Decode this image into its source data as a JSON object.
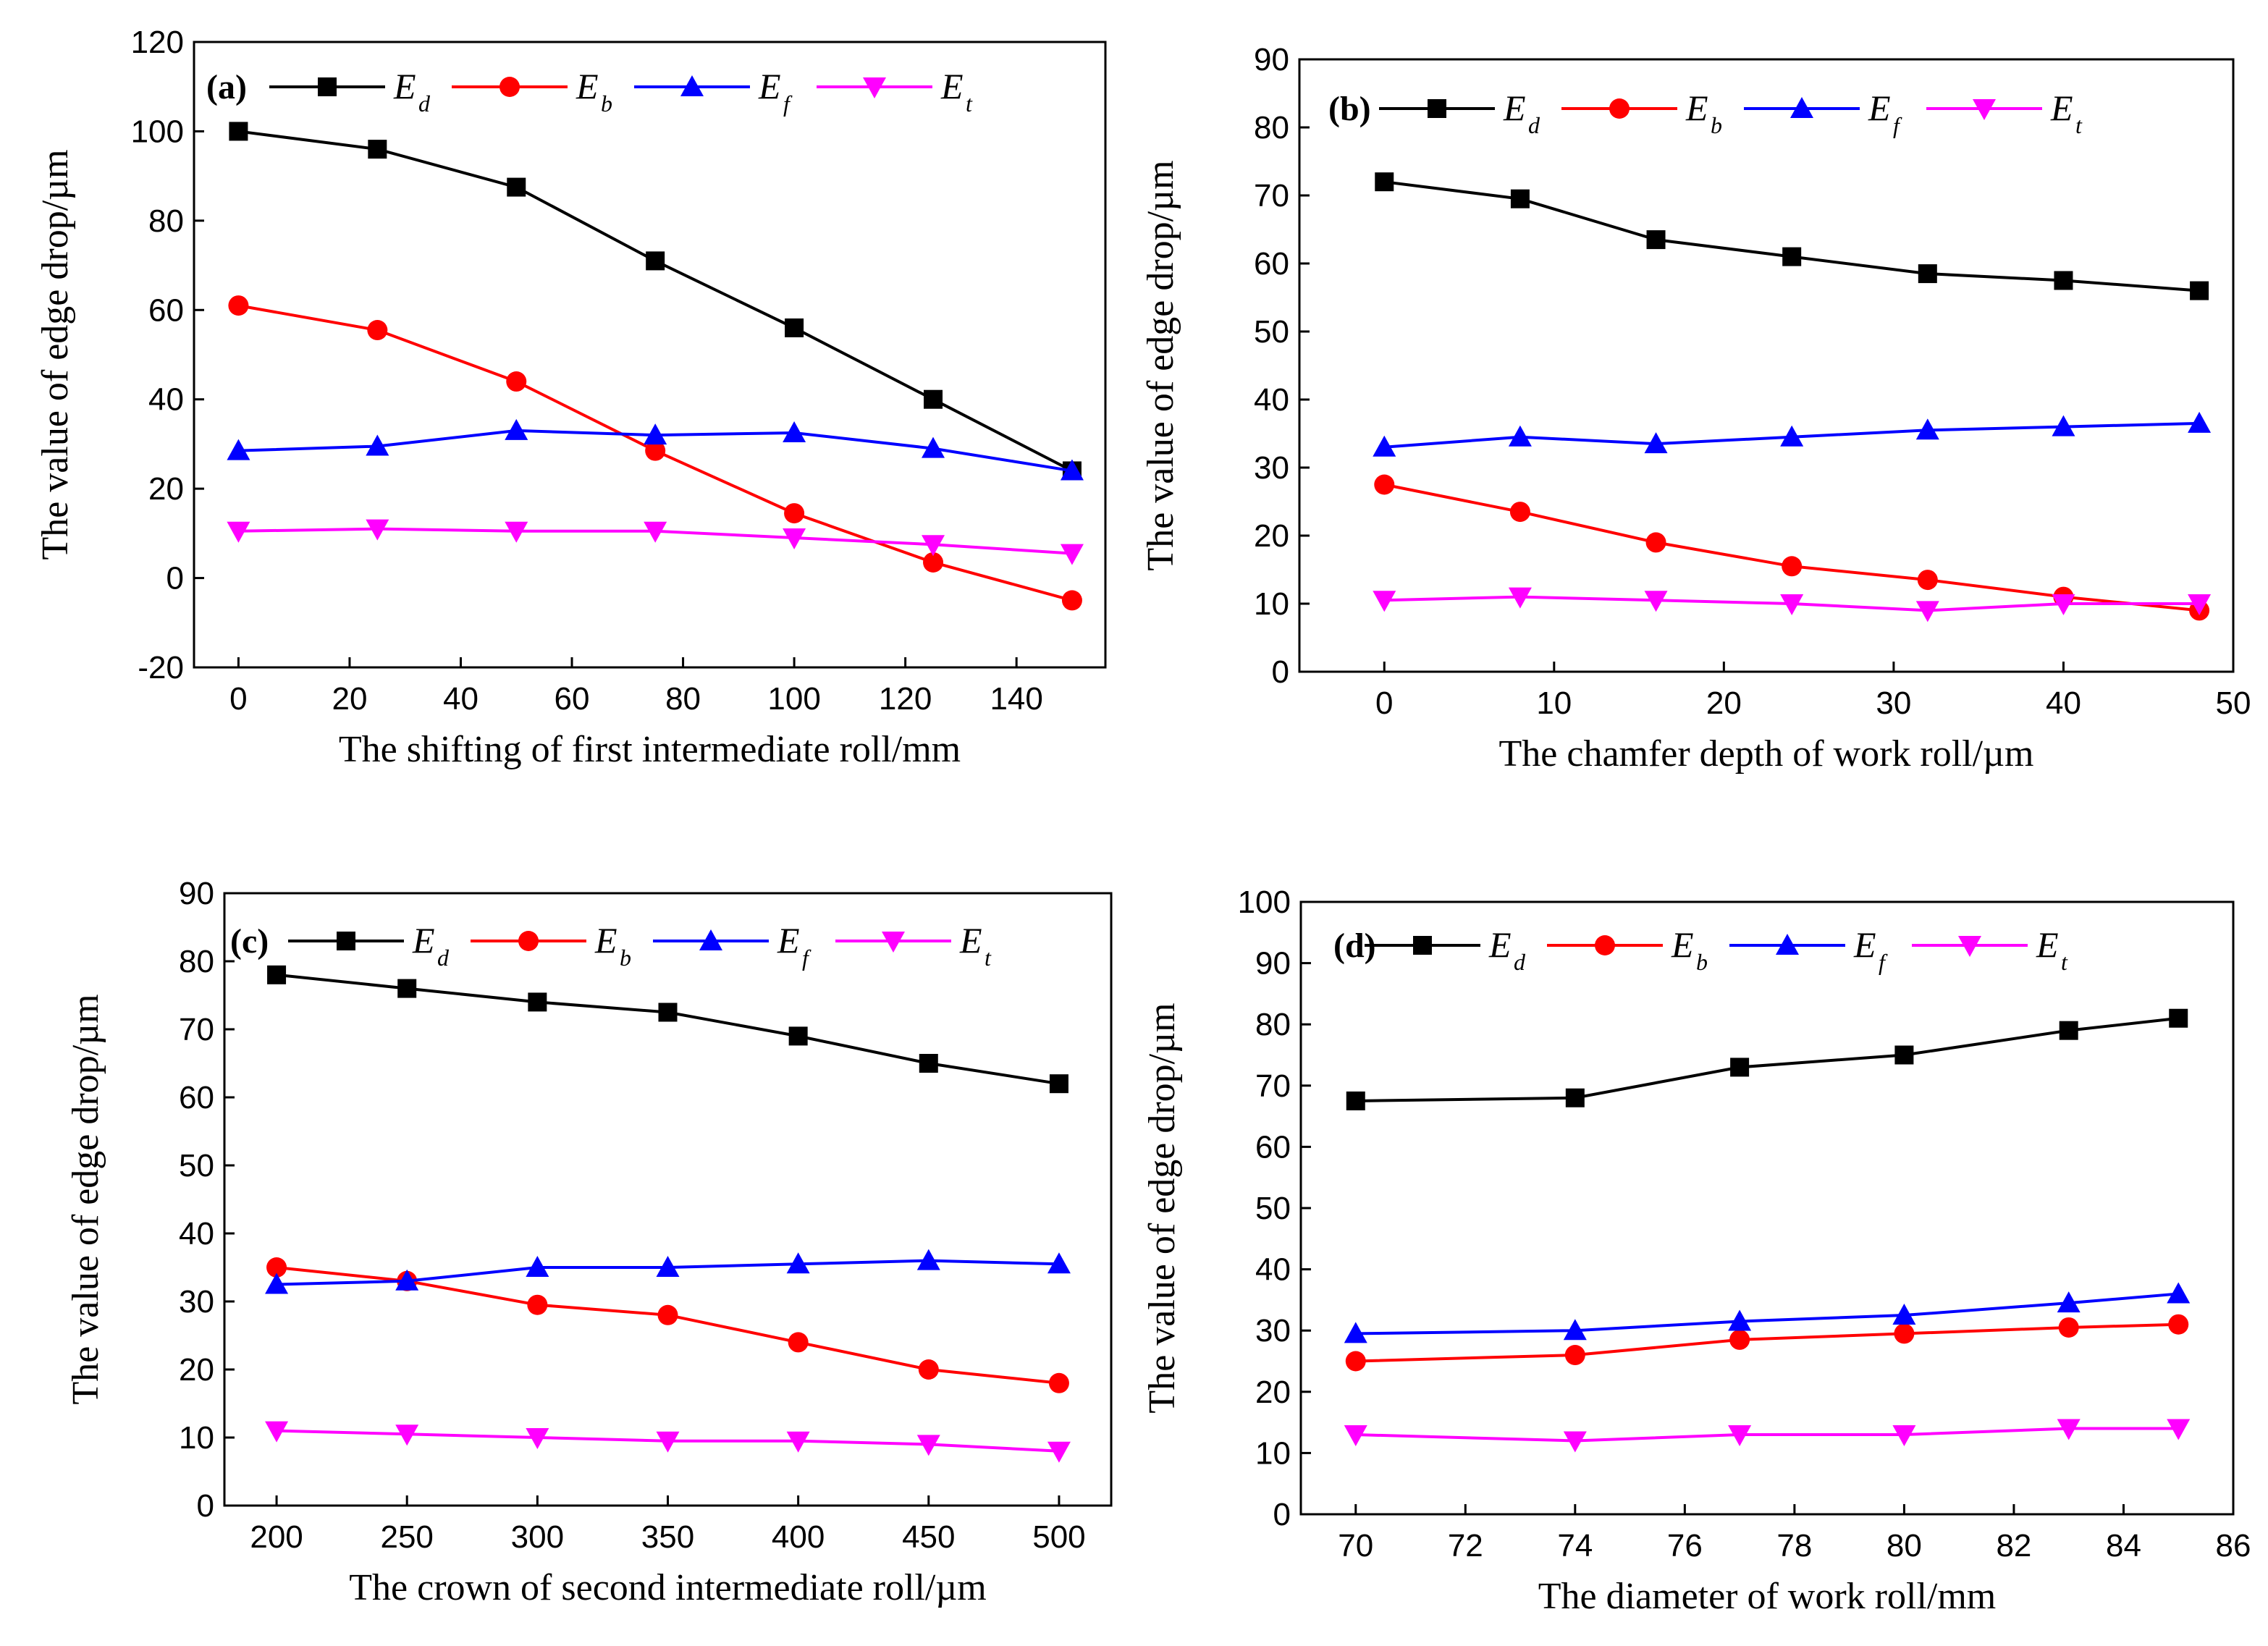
{
  "chart_data": [
    {
      "id": "a",
      "type": "line",
      "label": "(a)",
      "xlabel": "The shifting of first intermediate roll/mm",
      "ylabel": "The value of edge drop/µm",
      "xlim": [
        -8,
        156
      ],
      "ylim": [
        -20,
        120
      ],
      "xticks": [
        0,
        20,
        40,
        60,
        80,
        100,
        120,
        140
      ],
      "xtick_labels": [
        "0",
        "20",
        "40",
        "60",
        "80",
        "100",
        "120",
        "140"
      ],
      "yticks": [
        -20,
        0,
        20,
        40,
        60,
        80,
        100,
        120
      ],
      "ytick_labels": [
        "-20",
        "0",
        "20",
        "40",
        "60",
        "80",
        "100",
        "120"
      ],
      "x": [
        0,
        25,
        50,
        75,
        100,
        125,
        150
      ],
      "series": [
        {
          "key": "Ed",
          "name": "E",
          "sub": "d",
          "color": "#000000",
          "marker": "square",
          "values": [
            100,
            96,
            87.5,
            71,
            56,
            40,
            24
          ]
        },
        {
          "key": "Eb",
          "name": "E",
          "sub": "b",
          "color": "#ff0000",
          "marker": "circle",
          "values": [
            61,
            55.5,
            44,
            28.5,
            14.5,
            3.5,
            -5
          ]
        },
        {
          "key": "Ef",
          "name": "E",
          "sub": "f",
          "color": "#0000ff",
          "marker": "triangle-up",
          "values": [
            28.5,
            29.5,
            33,
            32,
            32.5,
            29,
            24
          ]
        },
        {
          "key": "Et",
          "name": "E",
          "sub": "t",
          "color": "#ff00ff",
          "marker": "triangle-down",
          "values": [
            10.5,
            11,
            10.5,
            10.5,
            9,
            7.5,
            5.5
          ]
        }
      ]
    },
    {
      "id": "b",
      "type": "line",
      "label": "(b)",
      "xlabel": "The chamfer depth of work roll/µm",
      "ylabel": "The value of edge drop/µm",
      "xlim": [
        -5,
        50
      ],
      "ylim": [
        0,
        90
      ],
      "xticks": [
        0,
        10,
        20,
        30,
        40,
        50
      ],
      "xtick_labels": [
        "0",
        "10",
        "20",
        "30",
        "40",
        "50"
      ],
      "yticks": [
        0,
        10,
        20,
        30,
        40,
        50,
        60,
        70,
        80,
        90
      ],
      "ytick_labels": [
        "0",
        "10",
        "20",
        "30",
        "40",
        "50",
        "60",
        "70",
        "80",
        "90"
      ],
      "x": [
        0,
        8,
        16,
        24,
        32,
        40,
        48
      ],
      "series": [
        {
          "key": "Ed",
          "name": "E",
          "sub": "d",
          "color": "#000000",
          "marker": "square",
          "values": [
            72,
            69.5,
            63.5,
            61,
            58.5,
            57.5,
            56
          ]
        },
        {
          "key": "Eb",
          "name": "E",
          "sub": "b",
          "color": "#ff0000",
          "marker": "circle",
          "values": [
            27.5,
            23.5,
            19,
            15.5,
            13.5,
            11,
            9
          ]
        },
        {
          "key": "Ef",
          "name": "E",
          "sub": "f",
          "color": "#0000ff",
          "marker": "triangle-up",
          "values": [
            33,
            34.5,
            33.5,
            34.5,
            35.5,
            36,
            36.5
          ]
        },
        {
          "key": "Et",
          "name": "E",
          "sub": "t",
          "color": "#ff00ff",
          "marker": "triangle-down",
          "values": [
            10.5,
            11,
            10.5,
            10,
            9,
            10,
            10
          ]
        }
      ]
    },
    {
      "id": "c",
      "type": "line",
      "label": "(c)",
      "xlabel": "The crown of second intermediate roll/µm",
      "ylabel": "The value of edge drop/µm",
      "xlim": [
        180,
        520
      ],
      "ylim": [
        0,
        90
      ],
      "xticks": [
        200,
        250,
        300,
        350,
        400,
        450,
        500
      ],
      "xtick_labels": [
        "200",
        "250",
        "300",
        "350",
        "400",
        "450",
        "500"
      ],
      "yticks": [
        0,
        10,
        20,
        30,
        40,
        50,
        60,
        70,
        80,
        90
      ],
      "ytick_labels": [
        "0",
        "10",
        "20",
        "30",
        "40",
        "50",
        "60",
        "70",
        "80",
        "90"
      ],
      "x": [
        200,
        250,
        300,
        350,
        400,
        450,
        500
      ],
      "series": [
        {
          "key": "Ed",
          "name": "E",
          "sub": "d",
          "color": "#000000",
          "marker": "square",
          "values": [
            78,
            76,
            74,
            72.5,
            69,
            65,
            62
          ]
        },
        {
          "key": "Eb",
          "name": "E",
          "sub": "b",
          "color": "#ff0000",
          "marker": "circle",
          "values": [
            35,
            33,
            29.5,
            28,
            24,
            20,
            18
          ]
        },
        {
          "key": "Ef",
          "name": "E",
          "sub": "f",
          "color": "#0000ff",
          "marker": "triangle-up",
          "values": [
            32.5,
            33,
            35,
            35,
            35.5,
            36,
            35.5
          ]
        },
        {
          "key": "Et",
          "name": "E",
          "sub": "t",
          "color": "#ff00ff",
          "marker": "triangle-down",
          "values": [
            11,
            10.5,
            10,
            9.5,
            9.5,
            9,
            8
          ]
        }
      ]
    },
    {
      "id": "d",
      "type": "line",
      "label": "(d)",
      "xlabel": "The diameter of work roll/mm",
      "ylabel": "The value of edge drop/µm",
      "xlim": [
        69,
        86
      ],
      "ylim": [
        0,
        100
      ],
      "xticks": [
        70,
        72,
        74,
        76,
        78,
        80,
        82,
        84,
        86
      ],
      "xtick_labels": [
        "70",
        "72",
        "74",
        "76",
        "78",
        "80",
        "82",
        "84",
        "86"
      ],
      "yticks": [
        0,
        10,
        20,
        30,
        40,
        50,
        60,
        70,
        80,
        90,
        100
      ],
      "ytick_labels": [
        "0",
        "10",
        "20",
        "30",
        "40",
        "50",
        "60",
        "70",
        "80",
        "90",
        "100"
      ],
      "x": [
        70,
        74,
        77,
        80,
        83,
        85
      ],
      "series": [
        {
          "key": "Ed",
          "name": "E",
          "sub": "d",
          "color": "#000000",
          "marker": "square",
          "values": [
            67.5,
            68,
            73,
            75,
            79,
            81
          ]
        },
        {
          "key": "Eb",
          "name": "E",
          "sub": "b",
          "color": "#ff0000",
          "marker": "circle",
          "values": [
            25,
            26,
            28.5,
            29.5,
            30.5,
            31
          ]
        },
        {
          "key": "Ef",
          "name": "E",
          "sub": "f",
          "color": "#0000ff",
          "marker": "triangle-up",
          "values": [
            29.5,
            30,
            31.5,
            32.5,
            34.5,
            36
          ]
        },
        {
          "key": "Et",
          "name": "E",
          "sub": "t",
          "color": "#ff00ff",
          "marker": "triangle-down",
          "values": [
            13,
            12,
            13,
            13,
            14,
            14
          ]
        }
      ]
    }
  ]
}
